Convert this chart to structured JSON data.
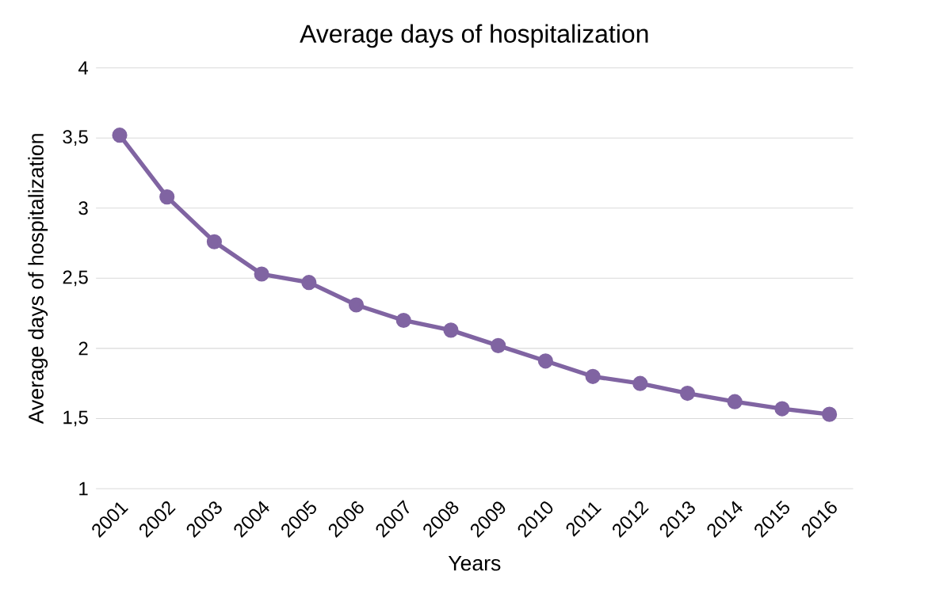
{
  "chart_data": {
    "type": "line",
    "title": "Average days of hospitalization",
    "xlabel": "Years",
    "ylabel": "Average days of hospitalization",
    "categories": [
      "2001",
      "2002",
      "2003",
      "2004",
      "2005",
      "2006",
      "2007",
      "2008",
      "2009",
      "2010",
      "2011",
      "2012",
      "2013",
      "2014",
      "2015",
      "2016"
    ],
    "series": [
      {
        "color": "#8064a2",
        "values": [
          3.52,
          3.08,
          2.76,
          2.53,
          2.47,
          2.31,
          2.2,
          2.13,
          2.02,
          1.91,
          1.8,
          1.75,
          1.68,
          1.62,
          1.57,
          1.53
        ]
      }
    ],
    "ylim": [
      1,
      4
    ],
    "yticks": [
      1,
      {
        "value": 1.5,
        "label": "1,5"
      },
      2,
      {
        "value": 2.5,
        "label": "2,5"
      },
      3,
      {
        "value": 3.5,
        "label": "3,5"
      },
      4
    ],
    "grid": "y",
    "marker": "circle",
    "line_style": "solid"
  }
}
